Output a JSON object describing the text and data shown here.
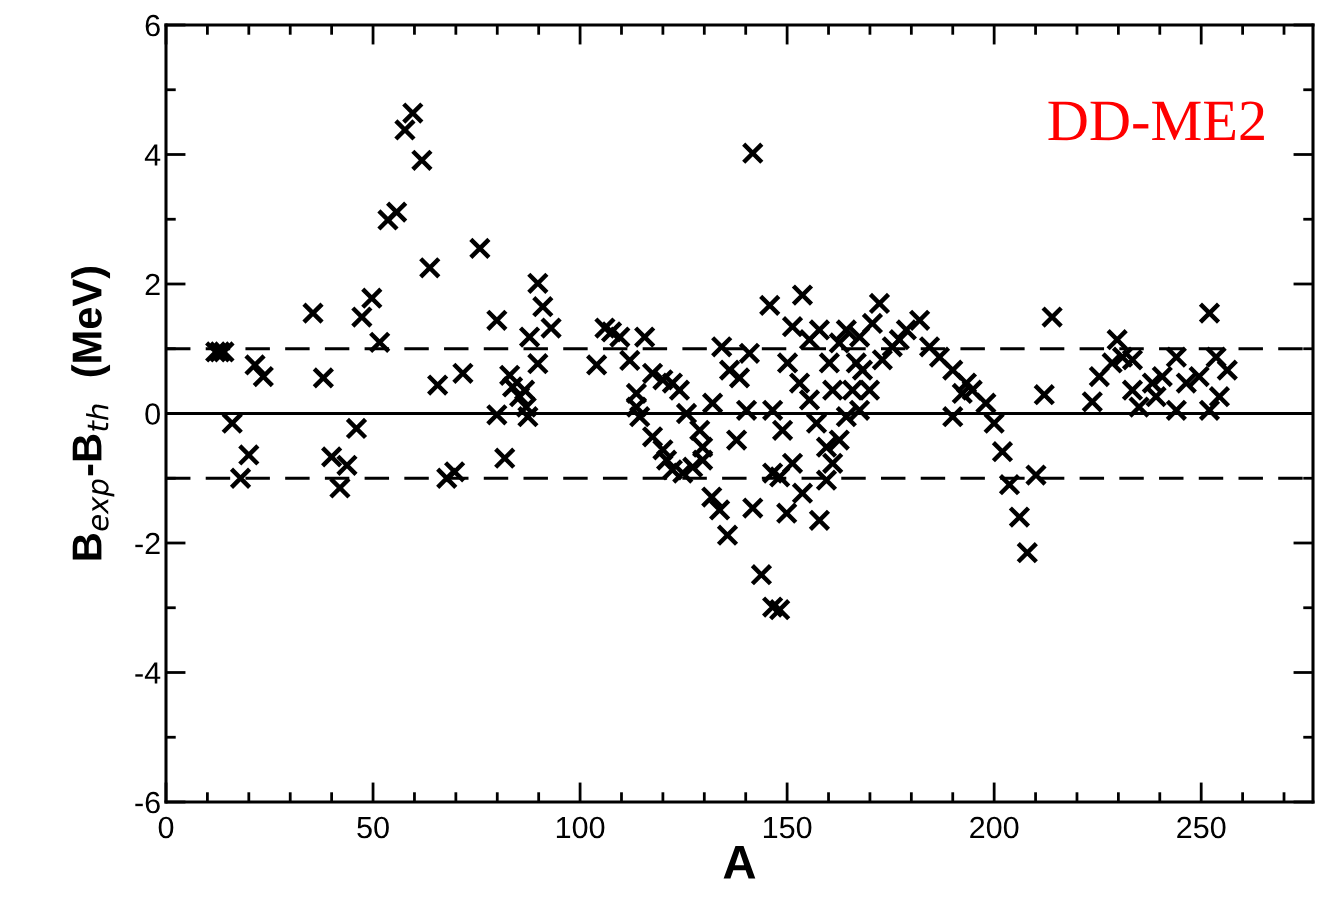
{
  "chart_data": {
    "type": "scatter",
    "xlabel": "A",
    "ylabel": "B$_{exp}$-B$_{th}$  (MeV)",
    "annotations": [
      "DD-ME2"
    ],
    "xlim": [
      0,
      277
    ],
    "ylim": [
      -6,
      6
    ],
    "xticks": [
      0,
      {
        "value": 10,
        "label": null
      },
      {
        "value": 20,
        "label": null
      },
      {
        "value": 30,
        "label": null
      },
      {
        "value": 40,
        "label": null
      },
      50,
      {
        "value": 60,
        "label": null
      },
      {
        "value": 70,
        "label": null
      },
      {
        "value": 80,
        "label": null
      },
      {
        "value": 90,
        "label": null
      },
      100,
      {
        "value": 110,
        "label": null
      },
      {
        "value": 120,
        "label": null
      },
      {
        "value": 130,
        "label": null
      },
      {
        "value": 140,
        "label": null
      },
      150,
      {
        "value": 160,
        "label": null
      },
      {
        "value": 170,
        "label": null
      },
      {
        "value": 180,
        "label": null
      },
      {
        "value": 190,
        "label": null
      },
      200,
      {
        "value": 210,
        "label": null
      },
      {
        "value": 220,
        "label": null
      },
      {
        "value": 230,
        "label": null
      },
      {
        "value": 240,
        "label": null
      },
      250,
      {
        "value": 260,
        "label": null
      },
      {
        "value": 270,
        "label": null
      }
    ],
    "yticks": [
      -6,
      {
        "value": -5,
        "label": null
      },
      -4,
      {
        "value": -3,
        "label": null
      },
      -2,
      {
        "value": -1,
        "label": null
      },
      0,
      {
        "value": 1,
        "label": null
      },
      2,
      {
        "value": 3,
        "label": null
      },
      4,
      {
        "value": 5,
        "label": null
      },
      6
    ],
    "ref_lines": [
      {
        "axis": "y",
        "value": 0,
        "line_style": "solid",
        "color": "#000000"
      },
      {
        "axis": "y",
        "value": 1,
        "line_style": "dashed",
        "color": "#000000"
      },
      {
        "axis": "y",
        "value": -1,
        "line_style": "dashed",
        "color": "#000000"
      }
    ],
    "grid": false,
    "legend": false,
    "marker": "cross",
    "series": [
      {
        "color": "#000000",
        "x": [
          12,
          13,
          14,
          21.5,
          23.5,
          16,
          20,
          18,
          35.5,
          38,
          40,
          43.7,
          42,
          46,
          47.3,
          49.7,
          51.6,
          53.6,
          55.7,
          61.8,
          57.7,
          59.6,
          63.7,
          65.6,
          67.8,
          69.7,
          71.7,
          75.8,
          79.9,
          79.9,
          81.8,
          83,
          85.4,
          87,
          87.4,
          87.8,
          89.8,
          89.8,
          91,
          93,
          83.7,
          86.6,
          104,
          106,
          107.6,
          109.6,
          115.6,
          112,
          113.6,
          113.6,
          114.4,
          117.5,
          120,
          122.3,
          124,
          117.5,
          120,
          120.9,
          122.3,
          124.8,
          127.2,
          129.6,
          125.7,
          128.9,
          129.6,
          132,
          131.8,
          133.7,
          135.6,
          134.2,
          136.1,
          138.5,
          140.9,
          137.8,
          140.2,
          141.7,
          141.7,
          143.8,
          146.5,
          148.2,
          145.8,
          153.7,
          150.1,
          146.5,
          146.5,
          148.9,
          149.9,
          148.2,
          151.3,
          153.7,
          157.8,
          151.3,
          155.4,
          157.8,
          153,
          155.4,
          157.1,
          159.5,
          159.5,
          161,
          160.2,
          162.6,
          164.3,
          167.5,
          172.3,
          170.6,
          166.7,
          165.8,
          164.3,
          162.6,
          161,
          169.9,
          167.5,
          175.4,
          178.8,
          182,
          184.4,
          173,
          168.2,
          177.1,
          186.8,
          190,
          193.3,
          194.7,
          192.3,
          190,
          198,
          200,
          202,
          203.7,
          206.1,
          208,
          210.1,
          212.1,
          214,
          223.7,
          225.4,
          228.5,
          229.7,
          231,
          233.4,
          235,
          238.2,
          240.6,
          244,
          244,
          246.4,
          249.5,
          252,
          253.6,
          256.3,
          252,
          254.4,
          239.1,
          233.4
        ],
        "values": [
          0.95,
          0.95,
          0.95,
          0.75,
          0.57,
          -0.15,
          -0.64,
          -1.0,
          1.55,
          0.55,
          -0.67,
          -0.8,
          -1.15,
          -0.23,
          1.49,
          1.78,
          1.1,
          2.99,
          3.11,
          3.91,
          4.38,
          4.64,
          2.25,
          0.44,
          -1.0,
          -0.9,
          0.62,
          2.55,
          1.44,
          -0.02,
          -0.69,
          0.59,
          0.26,
          0.1,
          -0.05,
          1.18,
          0.77,
          2.01,
          1.65,
          1.32,
          0.41,
          0.36,
          0.75,
          1.32,
          1.26,
          1.18,
          1.18,
          0.82,
          0.31,
          0.1,
          -0.05,
          0.62,
          0.52,
          0.47,
          0.36,
          -0.36,
          -0.56,
          -0.72,
          -0.87,
          -0.92,
          -0.83,
          -0.72,
          0.0,
          -0.26,
          -0.52,
          0.16,
          -1.29,
          -1.49,
          -1.88,
          1.03,
          0.67,
          0.55,
          0.93,
          -0.41,
          0.05,
          4.02,
          -1.46,
          -2.49,
          -2.99,
          -3.03,
          1.67,
          1.83,
          0.78,
          0.05,
          -0.92,
          -0.26,
          -1.54,
          -0.98,
          -0.77,
          -1.23,
          -1.65,
          1.34,
          1.14,
          1.29,
          0.47,
          0.21,
          -0.15,
          -0.52,
          -1.03,
          0.36,
          0.78,
          1.09,
          1.29,
          1.18,
          1.7,
          1.39,
          0.78,
          0.36,
          -0.05,
          -0.41,
          -0.77,
          0.36,
          0.05,
          1.03,
          1.29,
          1.44,
          1.03,
          0.83,
          0.67,
          1.14,
          0.87,
          0.67,
          0.47,
          0.36,
          0.31,
          -0.05,
          0.16,
          -0.15,
          -0.59,
          -1.1,
          -1.6,
          -2.15,
          -0.95,
          0.29,
          1.49,
          0.18,
          0.57,
          0.78,
          1.14,
          0.87,
          0.83,
          0.1,
          0.47,
          0.57,
          0.87,
          0.05,
          0.47,
          0.57,
          0.05,
          0.87,
          0.67,
          1.55,
          0.26,
          0.26,
          0.36
        ]
      }
    ]
  }
}
